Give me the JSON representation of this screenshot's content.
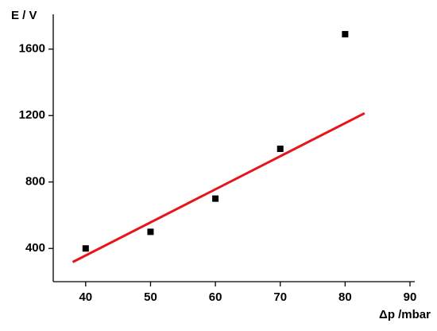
{
  "chart_data": {
    "type": "scatter",
    "y_label": "E / V",
    "x_label": "Δp /mbar",
    "xlim": [
      35,
      90
    ],
    "xticks": [
      40,
      50,
      60,
      70,
      80,
      90
    ],
    "ylim": [
      200,
      1800
    ],
    "yticks": [
      400,
      800,
      1200,
      1600
    ],
    "series": [
      {
        "type": "scatter",
        "x": [
          40,
          50,
          60,
          70,
          80
        ],
        "values": [
          400,
          500,
          700,
          1000,
          1690
        ],
        "color": "#000000"
      },
      {
        "type": "line",
        "x": [
          38,
          83
        ],
        "values": [
          318,
          1214
        ],
        "color": "#e8141b"
      }
    ]
  }
}
